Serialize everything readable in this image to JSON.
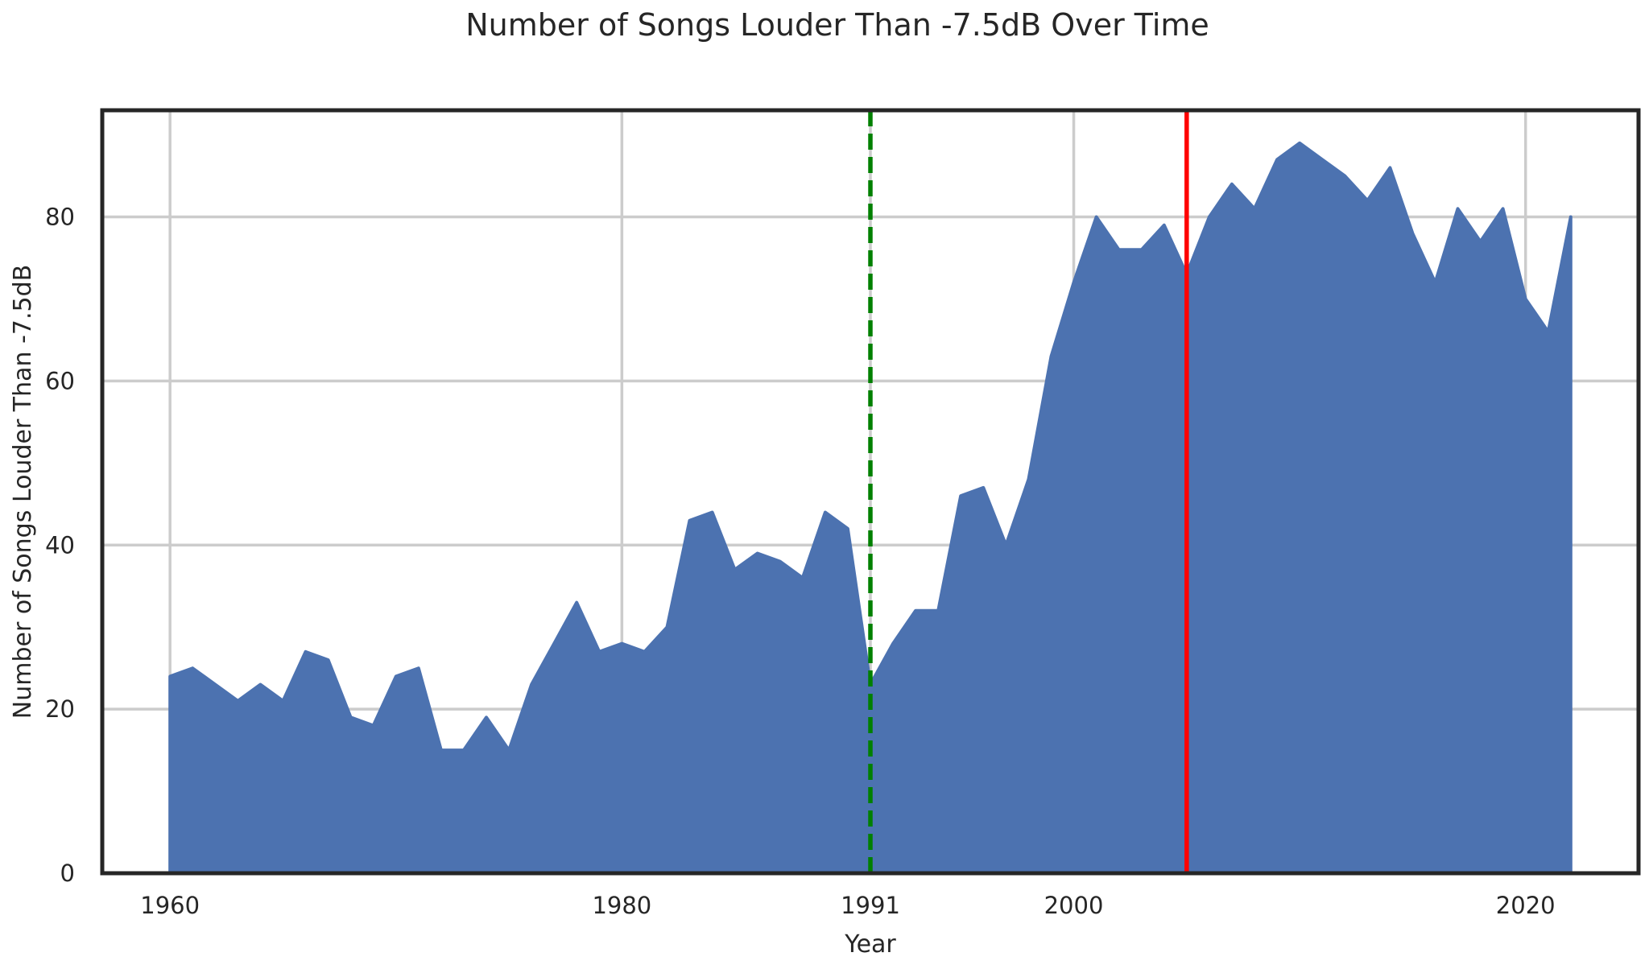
{
  "chart_data": {
    "type": "area",
    "title": "Number of Songs Louder Than -7.5dB Over Time",
    "xlabel": "Year",
    "ylabel": "Number of Songs Louder Than -7.5dB",
    "xlim": [
      1957,
      2025
    ],
    "ylim": [
      0,
      93
    ],
    "x_ticks": [
      1960,
      1980,
      1991,
      2000,
      2020
    ],
    "y_ticks": [
      0,
      20,
      40,
      60,
      80
    ],
    "grid": true,
    "fill_color": "#4c72b0",
    "x": [
      1960,
      1961,
      1962,
      1963,
      1964,
      1965,
      1966,
      1967,
      1968,
      1969,
      1970,
      1971,
      1972,
      1973,
      1974,
      1975,
      1976,
      1977,
      1978,
      1979,
      1980,
      1981,
      1982,
      1983,
      1984,
      1985,
      1986,
      1987,
      1988,
      1989,
      1990,
      1991,
      1992,
      1993,
      1994,
      1995,
      1996,
      1997,
      1998,
      1999,
      2000,
      2001,
      2002,
      2003,
      2004,
      2005,
      2006,
      2007,
      2008,
      2009,
      2010,
      2011,
      2012,
      2013,
      2014,
      2015,
      2016,
      2017,
      2018,
      2019,
      2020,
      2021,
      2022
    ],
    "values": [
      24,
      25,
      23,
      21,
      23,
      21,
      27,
      26,
      19,
      18,
      24,
      25,
      15,
      15,
      19,
      15,
      23,
      28,
      33,
      27,
      28,
      27,
      30,
      43,
      44,
      37,
      39,
      38,
      36,
      44,
      42,
      23,
      28,
      32,
      32,
      46,
      47,
      40,
      48,
      63,
      72,
      80,
      76,
      76,
      79,
      73,
      80,
      84,
      81,
      87,
      89,
      87,
      85,
      82,
      86,
      78,
      72,
      81,
      77,
      81,
      70,
      66,
      80
    ],
    "reference_lines": [
      {
        "x": 1991,
        "color": "#008000",
        "style": "dashed"
      },
      {
        "x": 2005,
        "color": "#ff0000",
        "style": "solid"
      }
    ]
  }
}
